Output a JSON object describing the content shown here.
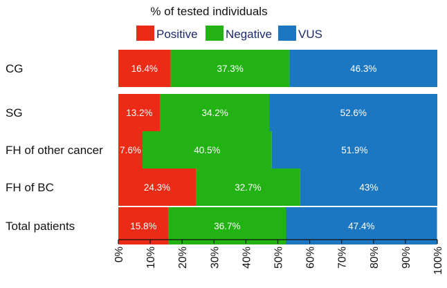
{
  "chart_data": {
    "type": "bar",
    "orientation": "horizontal",
    "stacked": true,
    "title": "% of tested individuals",
    "legend_position": "top",
    "categories": [
      "CG",
      "SG",
      "FH of other cancer",
      "FH of BC",
      "Total patients"
    ],
    "series": [
      {
        "name": "Positive",
        "color": "#ec2b17",
        "values": [
          16.4,
          13.2,
          7.6,
          24.3,
          15.8
        ],
        "labels": [
          "16.4%",
          "13.2%",
          "7.6%",
          "24.3%",
          "15.8%"
        ]
      },
      {
        "name": "Negative",
        "color": "#22b213",
        "values": [
          37.3,
          34.2,
          40.5,
          32.7,
          36.7
        ],
        "labels": [
          "37.3%",
          "34.2%",
          "40.5%",
          "32.7%",
          "36.7%"
        ]
      },
      {
        "name": "VUS",
        "color": "#1c77c2",
        "values": [
          46.3,
          52.6,
          51.9,
          43.0,
          47.4
        ],
        "labels": [
          "46.3%",
          "52.6%",
          "51.9%",
          "43%",
          "47.4%"
        ]
      }
    ],
    "xlim": [
      0,
      100
    ],
    "x_ticks": [
      "0%",
      "10%",
      "20%",
      "30%",
      "40%",
      "50%",
      "60%",
      "70%",
      "80%",
      "90%",
      "100%"
    ],
    "xlabel": "",
    "ylabel": "",
    "grid": false
  }
}
